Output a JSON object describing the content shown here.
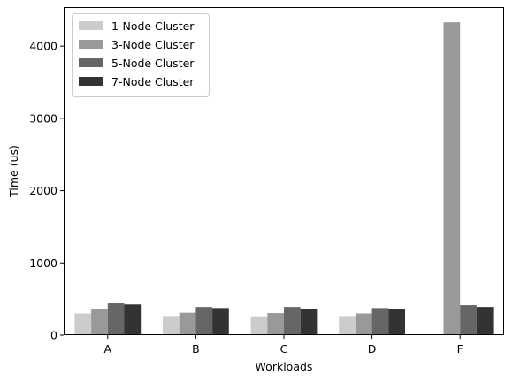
{
  "chart_data": {
    "type": "bar",
    "title": "",
    "xlabel": "Workloads",
    "ylabel": "Time (us)",
    "categories": [
      "A",
      "B",
      "C",
      "D",
      "F"
    ],
    "ylim": [
      0,
      4540
    ],
    "yticks": [
      0,
      1000,
      2000,
      3000,
      4000
    ],
    "legend_position": "top-left",
    "grid": false,
    "series": [
      {
        "name": "1-Node Cluster",
        "color": "#cccccc",
        "values": [
          300,
          265,
          260,
          265,
          0
        ]
      },
      {
        "name": "3-Node Cluster",
        "color": "#999999",
        "values": [
          355,
          310,
          305,
          300,
          4330
        ]
      },
      {
        "name": "5-Node Cluster",
        "color": "#666666",
        "values": [
          440,
          390,
          390,
          375,
          415
        ]
      },
      {
        "name": "7-Node Cluster",
        "color": "#333333",
        "values": [
          425,
          375,
          365,
          360,
          390
        ]
      }
    ]
  }
}
